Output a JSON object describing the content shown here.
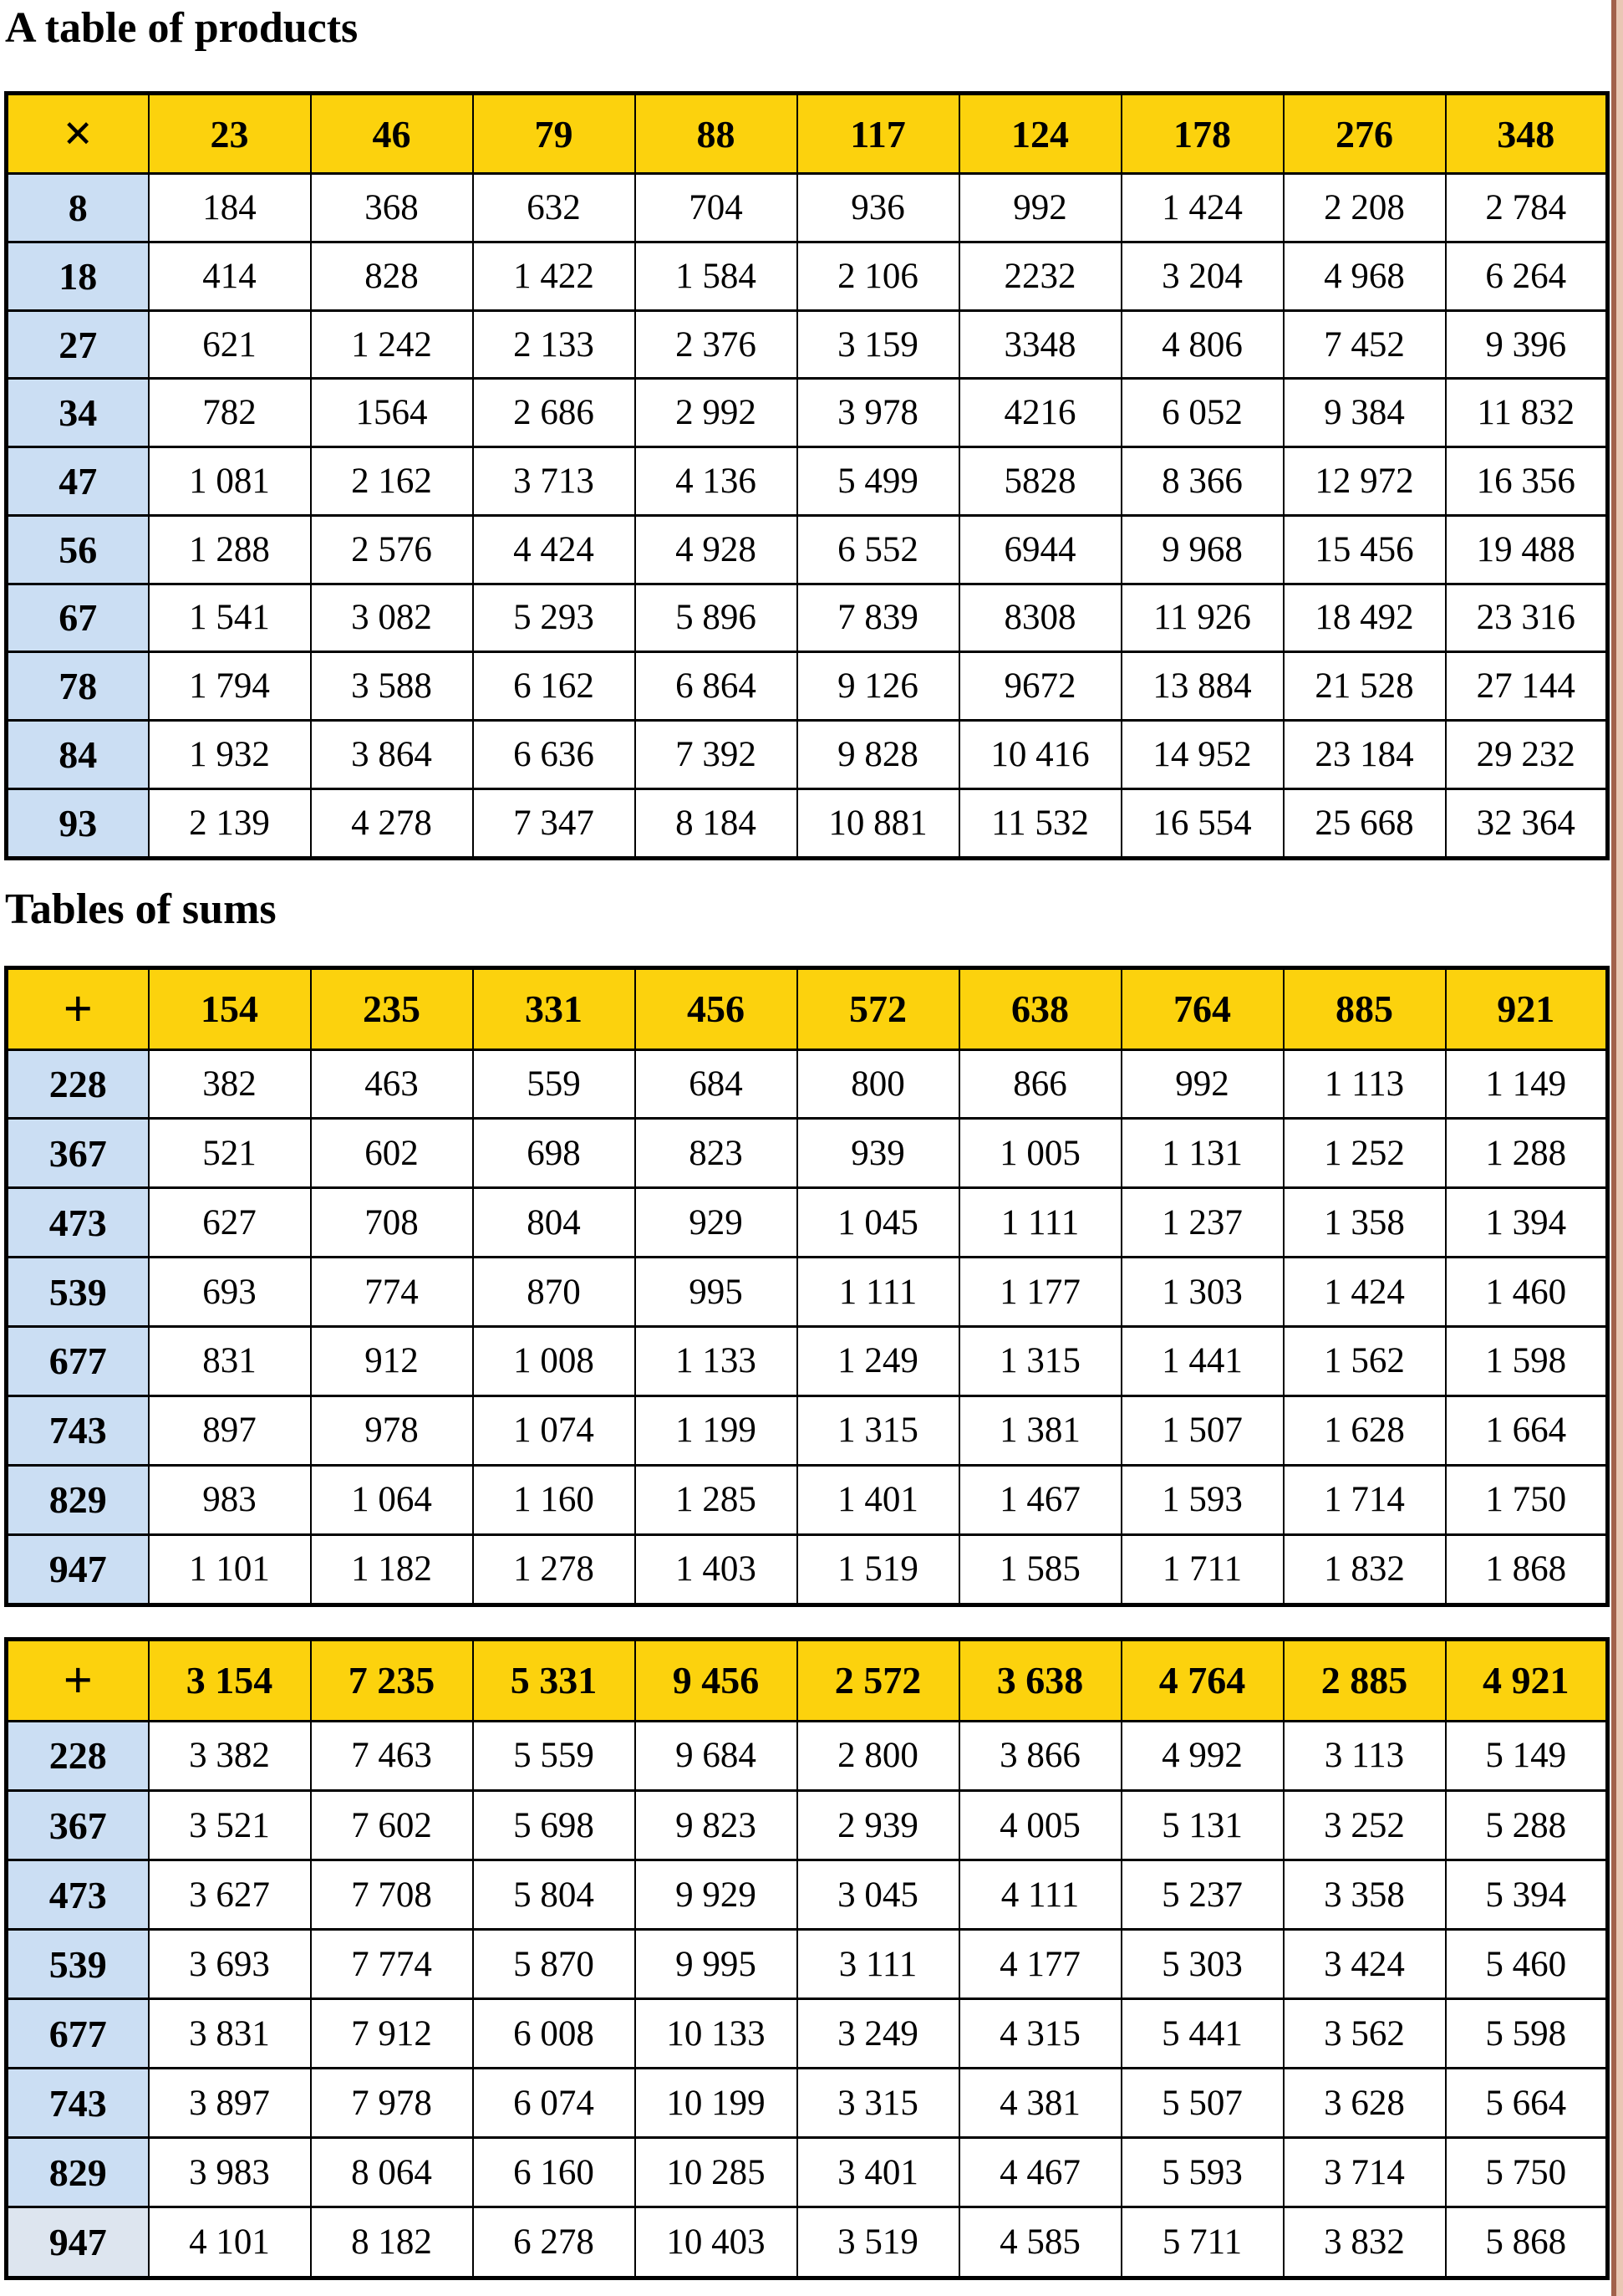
{
  "page": {
    "heading_products": "A table of products",
    "heading_sums": "Tables of sums"
  },
  "colors": {
    "header_yellow": "#fcd20d",
    "row_header_blue": "#cbdef3",
    "row_header_blue_light": "#dde5ef",
    "grid_black": "#000000",
    "page_edge_brown": "#a2614b",
    "page_edge_tan": "#e9c7b4"
  },
  "tables": [
    {
      "name": "products",
      "operator": "×",
      "column_headers": [
        "23",
        "46",
        "79",
        "88",
        "117",
        "124",
        "178",
        "276",
        "348"
      ],
      "rows": [
        {
          "header": "8",
          "values": [
            "184",
            "368",
            "632",
            "704",
            "936",
            "992",
            "1 424",
            "2 208",
            "2 784"
          ]
        },
        {
          "header": "18",
          "values": [
            "414",
            "828",
            "1 422",
            "1 584",
            "2 106",
            "2232",
            "3 204",
            "4 968",
            "6 264"
          ]
        },
        {
          "header": "27",
          "values": [
            "621",
            "1 242",
            "2 133",
            "2 376",
            "3 159",
            "3348",
            "4 806",
            "7 452",
            "9 396"
          ]
        },
        {
          "header": "34",
          "values": [
            "782",
            "1564",
            "2 686",
            "2 992",
            "3 978",
            "4216",
            "6 052",
            "9 384",
            "11 832"
          ]
        },
        {
          "header": "47",
          "values": [
            "1 081",
            "2 162",
            "3 713",
            "4 136",
            "5 499",
            "5828",
            "8 366",
            "12 972",
            "16 356"
          ]
        },
        {
          "header": "56",
          "values": [
            "1 288",
            "2 576",
            "4 424",
            "4 928",
            "6 552",
            "6944",
            "9 968",
            "15 456",
            "19 488"
          ]
        },
        {
          "header": "67",
          "values": [
            "1 541",
            "3 082",
            "5 293",
            "5 896",
            "7 839",
            "8308",
            "11 926",
            "18 492",
            "23 316"
          ]
        },
        {
          "header": "78",
          "values": [
            "1 794",
            "3 588",
            "6 162",
            "6 864",
            "9 126",
            "9672",
            "13 884",
            "21 528",
            "27 144"
          ]
        },
        {
          "header": "84",
          "values": [
            "1 932",
            "3 864",
            "6 636",
            "7 392",
            "9 828",
            "10 416",
            "14 952",
            "23 184",
            "29 232"
          ]
        },
        {
          "header": "93",
          "values": [
            "2 139",
            "4 278",
            "7 347",
            "8 184",
            "10 881",
            "11 532",
            "16 554",
            "25 668",
            "32 364"
          ]
        }
      ]
    },
    {
      "name": "sums-1",
      "operator": "+",
      "column_headers": [
        "154",
        "235",
        "331",
        "456",
        "572",
        "638",
        "764",
        "885",
        "921"
      ],
      "rows": [
        {
          "header": "228",
          "values": [
            "382",
            "463",
            "559",
            "684",
            "800",
            "866",
            "992",
            "1 113",
            "1 149"
          ]
        },
        {
          "header": "367",
          "values": [
            "521",
            "602",
            "698",
            "823",
            "939",
            "1 005",
            "1 131",
            "1 252",
            "1 288"
          ]
        },
        {
          "header": "473",
          "values": [
            "627",
            "708",
            "804",
            "929",
            "1 045",
            "1 111",
            "1 237",
            "1 358",
            "1 394"
          ]
        },
        {
          "header": "539",
          "values": [
            "693",
            "774",
            "870",
            "995",
            "1 111",
            "1 177",
            "1 303",
            "1 424",
            "1 460"
          ]
        },
        {
          "header": "677",
          "values": [
            "831",
            "912",
            "1 008",
            "1 133",
            "1 249",
            "1 315",
            "1 441",
            "1 562",
            "1 598"
          ]
        },
        {
          "header": "743",
          "values": [
            "897",
            "978",
            "1 074",
            "1 199",
            "1 315",
            "1 381",
            "1 507",
            "1 628",
            "1 664"
          ]
        },
        {
          "header": "829",
          "values": [
            "983",
            "1 064",
            "1 160",
            "1 285",
            "1 401",
            "1 467",
            "1 593",
            "1 714",
            "1 750"
          ]
        },
        {
          "header": "947",
          "values": [
            "1 101",
            "1 182",
            "1 278",
            "1 403",
            "1 519",
            "1 585",
            "1 711",
            "1 832",
            "1 868"
          ]
        }
      ]
    },
    {
      "name": "sums-2",
      "operator": "+",
      "column_headers": [
        "3 154",
        "7 235",
        "5 331",
        "9 456",
        "2 572",
        "3 638",
        "4 764",
        "2 885",
        "4 921"
      ],
      "rows": [
        {
          "header": "228",
          "values": [
            "3 382",
            "7 463",
            "5 559",
            "9 684",
            "2 800",
            "3 866",
            "4 992",
            "3 113",
            "5 149"
          ]
        },
        {
          "header": "367",
          "values": [
            "3 521",
            "7 602",
            "5 698",
            "9 823",
            "2 939",
            "4 005",
            "5 131",
            "3 252",
            "5 288"
          ]
        },
        {
          "header": "473",
          "values": [
            "3 627",
            "7 708",
            "5 804",
            "9 929",
            "3 045",
            "4 111",
            "5 237",
            "3 358",
            "5 394"
          ]
        },
        {
          "header": "539",
          "values": [
            "3 693",
            "7 774",
            "5 870",
            "9 995",
            "3 111",
            "4 177",
            "5 303",
            "3 424",
            "5 460"
          ]
        },
        {
          "header": "677",
          "values": [
            "3 831",
            "7 912",
            "6 008",
            "10 133",
            "3 249",
            "4 315",
            "5 441",
            "3 562",
            "5 598"
          ]
        },
        {
          "header": "743",
          "values": [
            "3 897",
            "7 978",
            "6 074",
            "10 199",
            "3 315",
            "4 381",
            "5 507",
            "3 628",
            "5 664"
          ]
        },
        {
          "header": "829",
          "values": [
            "3 983",
            "8 064",
            "6 160",
            "10 285",
            "3 401",
            "4 467",
            "5 593",
            "3 714",
            "5 750"
          ]
        },
        {
          "header": "947",
          "values": [
            "4 101",
            "8 182",
            "6 278",
            "10 403",
            "3 519",
            "4 585",
            "5 711",
            "3 832",
            "5 868"
          ]
        }
      ]
    }
  ]
}
